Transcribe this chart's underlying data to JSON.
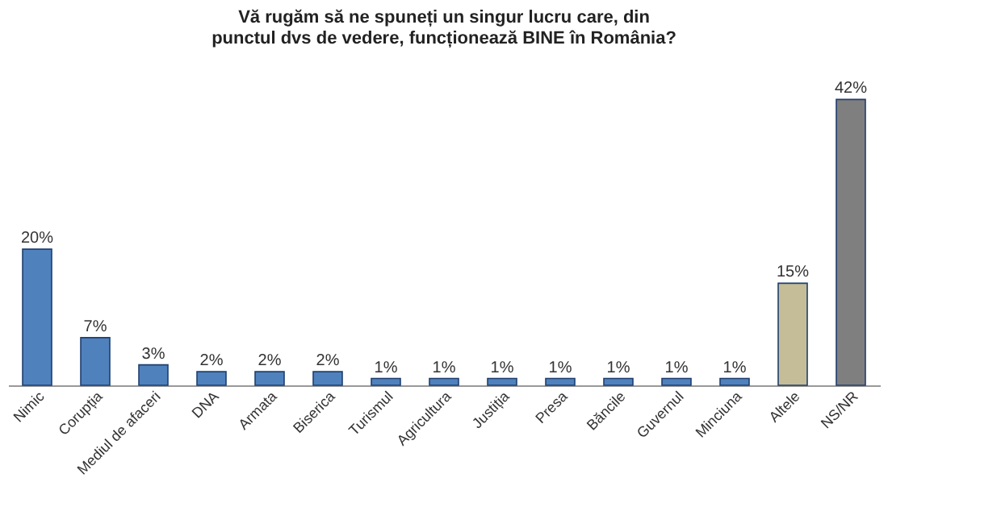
{
  "chart_data": {
    "type": "bar",
    "title": "Vă rugăm să ne spuneți un singur lucru care, din punctul dvs de vedere, funcționează BINE în România?",
    "categories": [
      "Nimic",
      "Corupția",
      "Mediul de afaceri",
      "DNA",
      "Armata",
      "Biserica",
      "Turismul",
      "Agricultura",
      "Justiția",
      "Presa",
      "Băncile",
      "Guvernul",
      "Minciuna",
      "Altele",
      "NS/NR"
    ],
    "values": [
      20,
      7,
      3,
      2,
      2,
      2,
      1,
      1,
      1,
      1,
      1,
      1,
      1,
      15,
      42
    ],
    "value_labels": [
      "20%",
      "7%",
      "3%",
      "2%",
      "2%",
      "2%",
      "1%",
      "1%",
      "1%",
      "1%",
      "1%",
      "1%",
      "1%",
      "15%",
      "42%"
    ],
    "colors": [
      "#4f81bd",
      "#4f81bd",
      "#4f81bd",
      "#4f81bd",
      "#4f81bd",
      "#4f81bd",
      "#4f81bd",
      "#4f81bd",
      "#4f81bd",
      "#4f81bd",
      "#4f81bd",
      "#4f81bd",
      "#4f81bd",
      "#c4bd97",
      "#7f7f7f"
    ],
    "grid": false
  }
}
